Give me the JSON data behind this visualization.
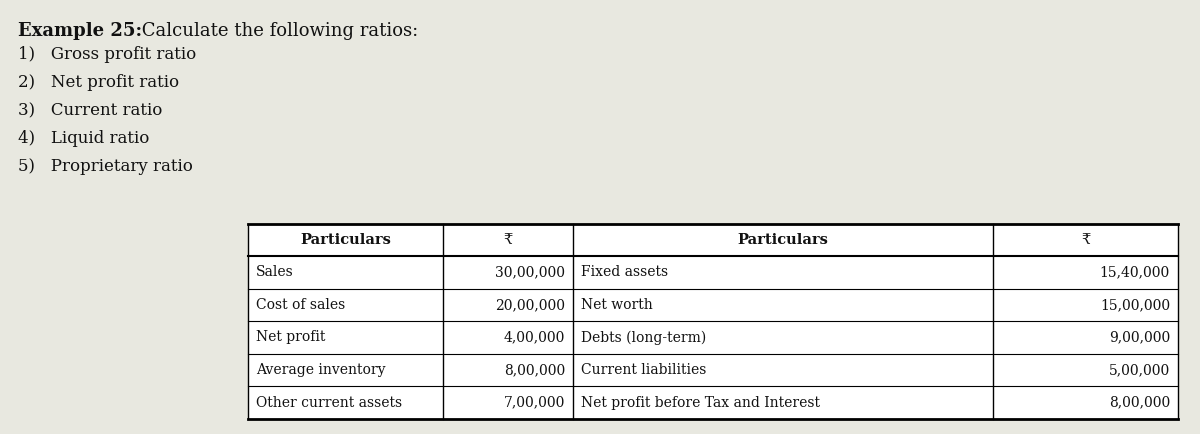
{
  "title_bold": "Example 25:",
  "title_normal": " Calculate the following ratios:",
  "items": [
    "1)   Gross profit ratio",
    "2)   Net profit ratio",
    "3)   Current ratio",
    "4)   Liquid ratio",
    "5)   Proprietary ratio"
  ],
  "table": {
    "left_headers": [
      "Particulars",
      "₹"
    ],
    "right_headers": [
      "Particulars",
      "₹"
    ],
    "left_rows": [
      [
        "Sales",
        "30,00,000"
      ],
      [
        "Cost of sales",
        "20,00,000"
      ],
      [
        "Net profit",
        "4,00,000"
      ],
      [
        "Average inventory",
        "8,00,000"
      ],
      [
        "Other current assets",
        "7,00,000"
      ]
    ],
    "right_rows": [
      [
        "Fixed assets",
        "15,40,000"
      ],
      [
        "Net worth",
        "15,00,000"
      ],
      [
        "Debts (long-term)",
        "9,00,000"
      ],
      [
        "Current liabilities",
        "5,00,000"
      ],
      [
        "Net profit before Tax and Interest",
        "8,00,000"
      ]
    ]
  },
  "bg_color": "#e8e8e0",
  "text_color": "#111111",
  "font_family": "serif",
  "title_fontsize": 13,
  "item_fontsize": 12,
  "header_fontsize": 10.5,
  "cell_fontsize": 10
}
